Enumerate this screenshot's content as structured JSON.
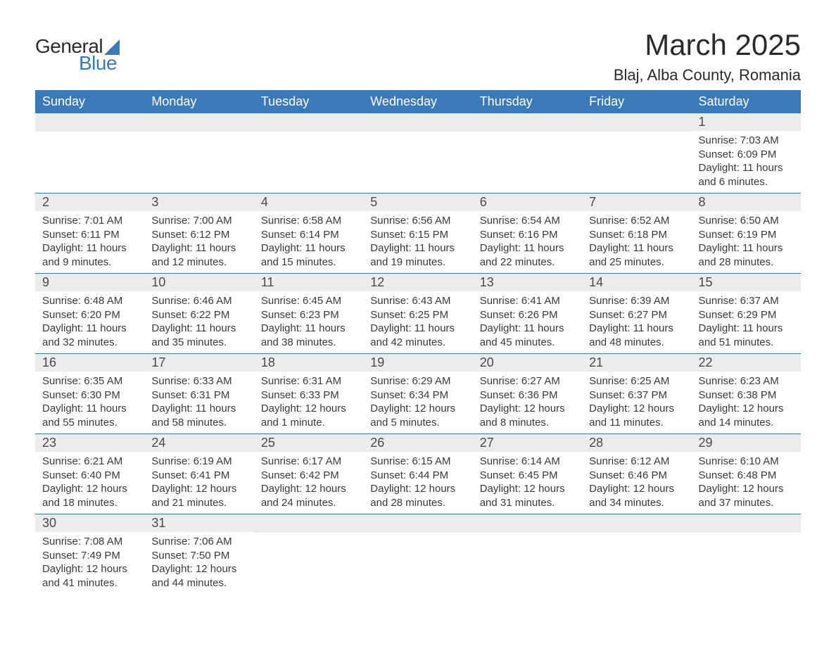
{
  "logo": {
    "text_general": "General",
    "text_blue": "Blue",
    "triangle_color": "#3a7ab8"
  },
  "header": {
    "month_title": "March 2025",
    "location": "Blaj, Alba County, Romania"
  },
  "colors": {
    "header_bg": "#3a7ab8",
    "header_text": "#ffffff",
    "daynum_bg": "#ececec",
    "text": "#3a3a3a",
    "border": "#3a7ab8"
  },
  "fonts": {
    "family": "Arial, Helvetica, sans-serif",
    "month_title_size": 42,
    "location_size": 22,
    "weekday_size": 18,
    "daynum_size": 18,
    "body_size": 15
  },
  "weekdays": [
    "Sunday",
    "Monday",
    "Tuesday",
    "Wednesday",
    "Thursday",
    "Friday",
    "Saturday"
  ],
  "weeks": [
    [
      null,
      null,
      null,
      null,
      null,
      null,
      {
        "day": "1",
        "sunrise": "Sunrise: 7:03 AM",
        "sunset": "Sunset: 6:09 PM",
        "daylight1": "Daylight: 11 hours",
        "daylight2": "and 6 minutes."
      }
    ],
    [
      {
        "day": "2",
        "sunrise": "Sunrise: 7:01 AM",
        "sunset": "Sunset: 6:11 PM",
        "daylight1": "Daylight: 11 hours",
        "daylight2": "and 9 minutes."
      },
      {
        "day": "3",
        "sunrise": "Sunrise: 7:00 AM",
        "sunset": "Sunset: 6:12 PM",
        "daylight1": "Daylight: 11 hours",
        "daylight2": "and 12 minutes."
      },
      {
        "day": "4",
        "sunrise": "Sunrise: 6:58 AM",
        "sunset": "Sunset: 6:14 PM",
        "daylight1": "Daylight: 11 hours",
        "daylight2": "and 15 minutes."
      },
      {
        "day": "5",
        "sunrise": "Sunrise: 6:56 AM",
        "sunset": "Sunset: 6:15 PM",
        "daylight1": "Daylight: 11 hours",
        "daylight2": "and 19 minutes."
      },
      {
        "day": "6",
        "sunrise": "Sunrise: 6:54 AM",
        "sunset": "Sunset: 6:16 PM",
        "daylight1": "Daylight: 11 hours",
        "daylight2": "and 22 minutes."
      },
      {
        "day": "7",
        "sunrise": "Sunrise: 6:52 AM",
        "sunset": "Sunset: 6:18 PM",
        "daylight1": "Daylight: 11 hours",
        "daylight2": "and 25 minutes."
      },
      {
        "day": "8",
        "sunrise": "Sunrise: 6:50 AM",
        "sunset": "Sunset: 6:19 PM",
        "daylight1": "Daylight: 11 hours",
        "daylight2": "and 28 minutes."
      }
    ],
    [
      {
        "day": "9",
        "sunrise": "Sunrise: 6:48 AM",
        "sunset": "Sunset: 6:20 PM",
        "daylight1": "Daylight: 11 hours",
        "daylight2": "and 32 minutes."
      },
      {
        "day": "10",
        "sunrise": "Sunrise: 6:46 AM",
        "sunset": "Sunset: 6:22 PM",
        "daylight1": "Daylight: 11 hours",
        "daylight2": "and 35 minutes."
      },
      {
        "day": "11",
        "sunrise": "Sunrise: 6:45 AM",
        "sunset": "Sunset: 6:23 PM",
        "daylight1": "Daylight: 11 hours",
        "daylight2": "and 38 minutes."
      },
      {
        "day": "12",
        "sunrise": "Sunrise: 6:43 AM",
        "sunset": "Sunset: 6:25 PM",
        "daylight1": "Daylight: 11 hours",
        "daylight2": "and 42 minutes."
      },
      {
        "day": "13",
        "sunrise": "Sunrise: 6:41 AM",
        "sunset": "Sunset: 6:26 PM",
        "daylight1": "Daylight: 11 hours",
        "daylight2": "and 45 minutes."
      },
      {
        "day": "14",
        "sunrise": "Sunrise: 6:39 AM",
        "sunset": "Sunset: 6:27 PM",
        "daylight1": "Daylight: 11 hours",
        "daylight2": "and 48 minutes."
      },
      {
        "day": "15",
        "sunrise": "Sunrise: 6:37 AM",
        "sunset": "Sunset: 6:29 PM",
        "daylight1": "Daylight: 11 hours",
        "daylight2": "and 51 minutes."
      }
    ],
    [
      {
        "day": "16",
        "sunrise": "Sunrise: 6:35 AM",
        "sunset": "Sunset: 6:30 PM",
        "daylight1": "Daylight: 11 hours",
        "daylight2": "and 55 minutes."
      },
      {
        "day": "17",
        "sunrise": "Sunrise: 6:33 AM",
        "sunset": "Sunset: 6:31 PM",
        "daylight1": "Daylight: 11 hours",
        "daylight2": "and 58 minutes."
      },
      {
        "day": "18",
        "sunrise": "Sunrise: 6:31 AM",
        "sunset": "Sunset: 6:33 PM",
        "daylight1": "Daylight: 12 hours",
        "daylight2": "and 1 minute."
      },
      {
        "day": "19",
        "sunrise": "Sunrise: 6:29 AM",
        "sunset": "Sunset: 6:34 PM",
        "daylight1": "Daylight: 12 hours",
        "daylight2": "and 5 minutes."
      },
      {
        "day": "20",
        "sunrise": "Sunrise: 6:27 AM",
        "sunset": "Sunset: 6:36 PM",
        "daylight1": "Daylight: 12 hours",
        "daylight2": "and 8 minutes."
      },
      {
        "day": "21",
        "sunrise": "Sunrise: 6:25 AM",
        "sunset": "Sunset: 6:37 PM",
        "daylight1": "Daylight: 12 hours",
        "daylight2": "and 11 minutes."
      },
      {
        "day": "22",
        "sunrise": "Sunrise: 6:23 AM",
        "sunset": "Sunset: 6:38 PM",
        "daylight1": "Daylight: 12 hours",
        "daylight2": "and 14 minutes."
      }
    ],
    [
      {
        "day": "23",
        "sunrise": "Sunrise: 6:21 AM",
        "sunset": "Sunset: 6:40 PM",
        "daylight1": "Daylight: 12 hours",
        "daylight2": "and 18 minutes."
      },
      {
        "day": "24",
        "sunrise": "Sunrise: 6:19 AM",
        "sunset": "Sunset: 6:41 PM",
        "daylight1": "Daylight: 12 hours",
        "daylight2": "and 21 minutes."
      },
      {
        "day": "25",
        "sunrise": "Sunrise: 6:17 AM",
        "sunset": "Sunset: 6:42 PM",
        "daylight1": "Daylight: 12 hours",
        "daylight2": "and 24 minutes."
      },
      {
        "day": "26",
        "sunrise": "Sunrise: 6:15 AM",
        "sunset": "Sunset: 6:44 PM",
        "daylight1": "Daylight: 12 hours",
        "daylight2": "and 28 minutes."
      },
      {
        "day": "27",
        "sunrise": "Sunrise: 6:14 AM",
        "sunset": "Sunset: 6:45 PM",
        "daylight1": "Daylight: 12 hours",
        "daylight2": "and 31 minutes."
      },
      {
        "day": "28",
        "sunrise": "Sunrise: 6:12 AM",
        "sunset": "Sunset: 6:46 PM",
        "daylight1": "Daylight: 12 hours",
        "daylight2": "and 34 minutes."
      },
      {
        "day": "29",
        "sunrise": "Sunrise: 6:10 AM",
        "sunset": "Sunset: 6:48 PM",
        "daylight1": "Daylight: 12 hours",
        "daylight2": "and 37 minutes."
      }
    ],
    [
      {
        "day": "30",
        "sunrise": "Sunrise: 7:08 AM",
        "sunset": "Sunset: 7:49 PM",
        "daylight1": "Daylight: 12 hours",
        "daylight2": "and 41 minutes."
      },
      {
        "day": "31",
        "sunrise": "Sunrise: 7:06 AM",
        "sunset": "Sunset: 7:50 PM",
        "daylight1": "Daylight: 12 hours",
        "daylight2": "and 44 minutes."
      },
      null,
      null,
      null,
      null,
      null
    ]
  ]
}
